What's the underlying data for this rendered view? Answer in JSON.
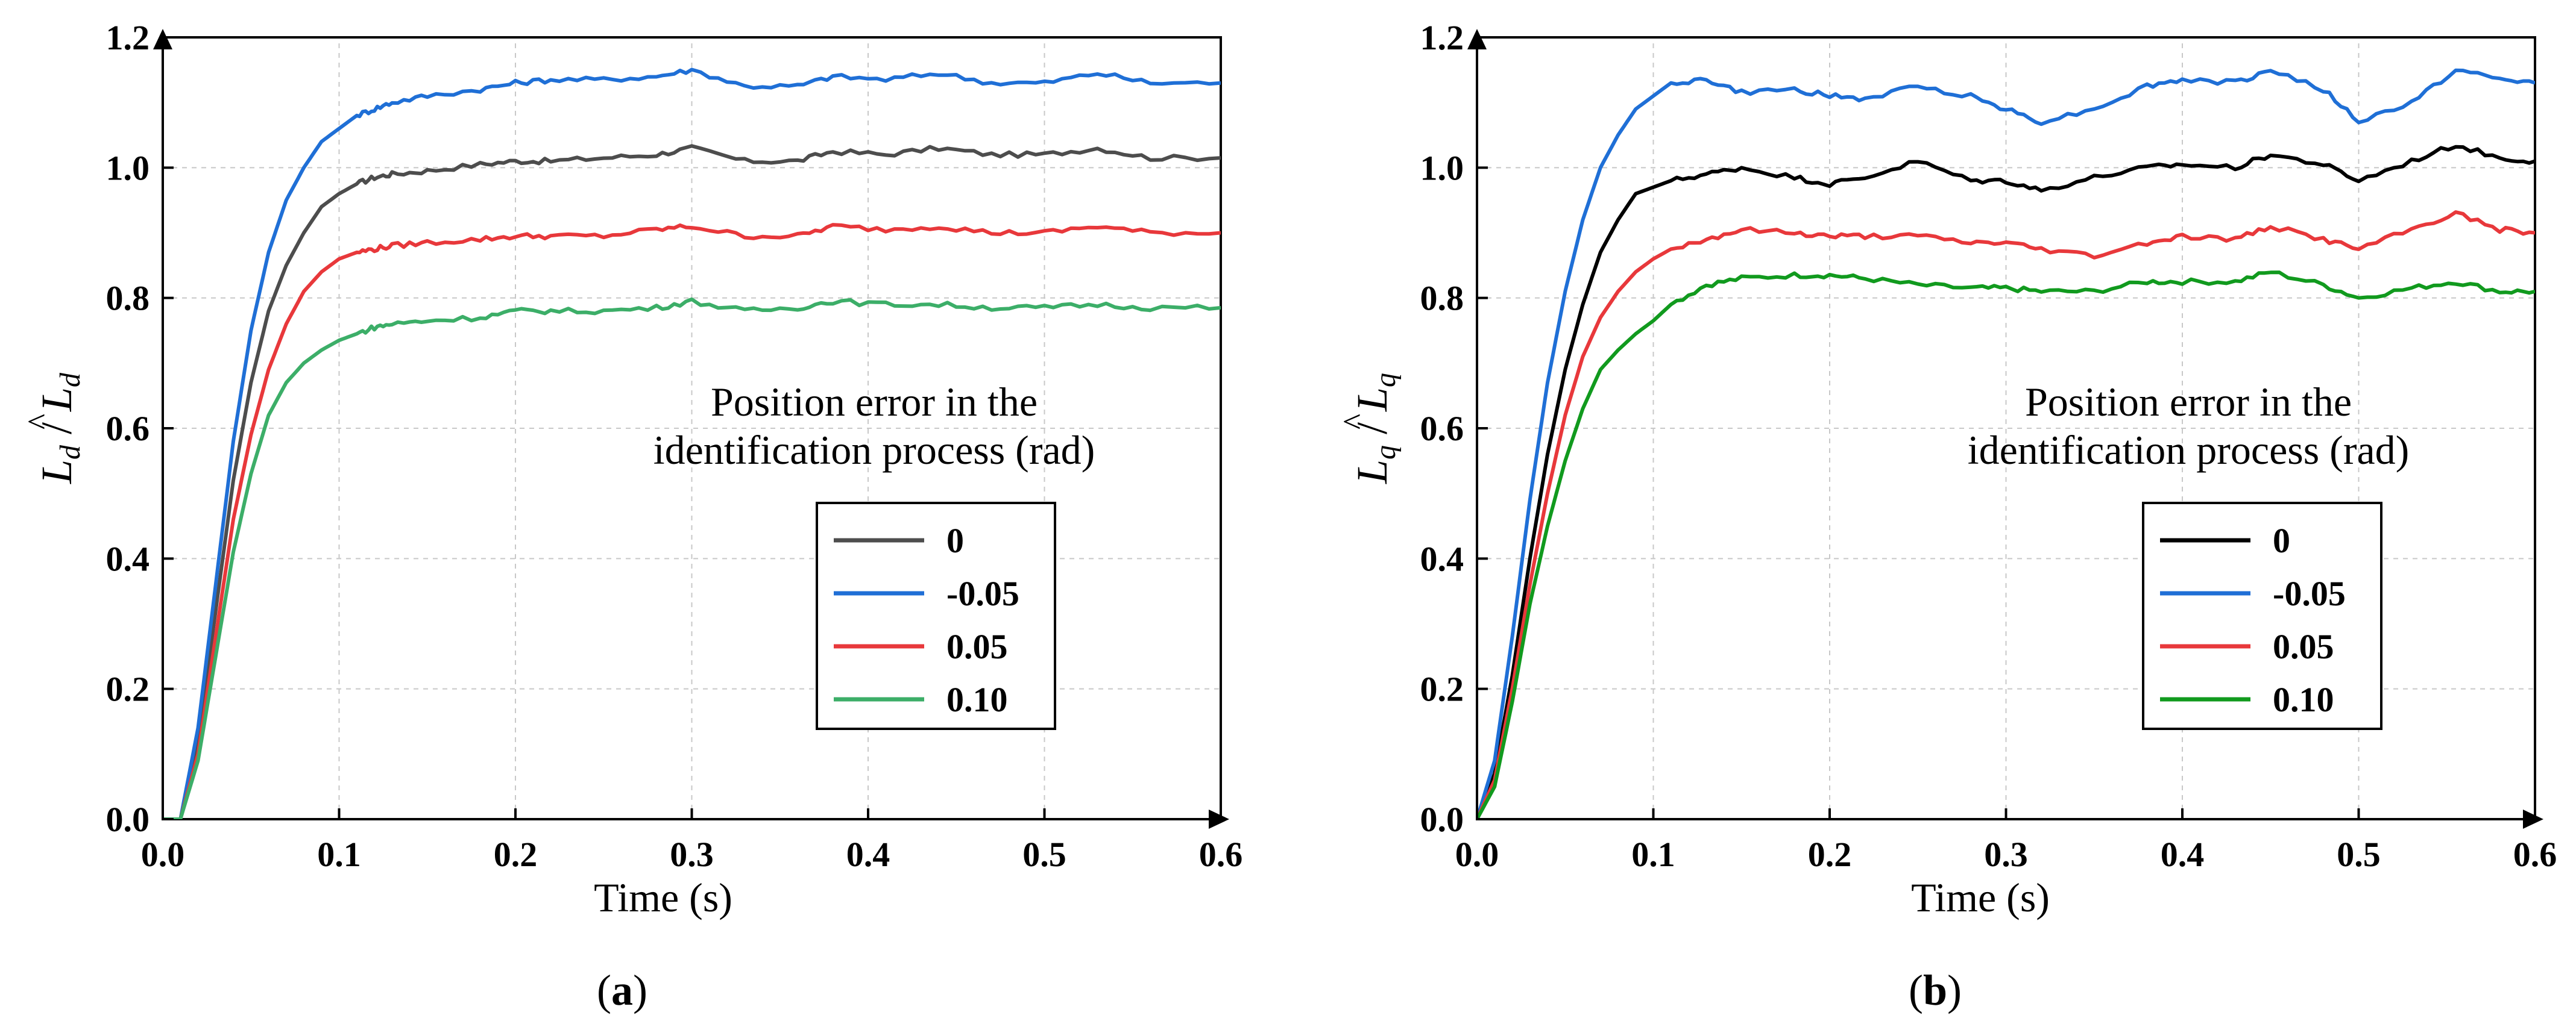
{
  "figure": {
    "panels": [
      {
        "caption_letter": "a",
        "ylabel_symbol": "L",
        "ylabel_sub": "d",
        "ylabel_sep": "/"
      },
      {
        "caption_letter": "b",
        "ylabel_symbol": "L",
        "ylabel_sub": "q",
        "ylabel_sep": "/"
      }
    ]
  },
  "chart_data": [
    {
      "type": "line",
      "title": "",
      "xlabel": "Time (s)",
      "ylabel": "L̂d / Ld",
      "xlim": [
        0.0,
        0.6
      ],
      "ylim": [
        0.0,
        1.2
      ],
      "xticks": [
        "0.0",
        "0.1",
        "0.2",
        "0.3",
        "0.4",
        "0.5",
        "0.6"
      ],
      "yticks": [
        "0.0",
        "0.2",
        "0.4",
        "0.6",
        "0.8",
        "1.0",
        "1.2"
      ],
      "grid": true,
      "legend_position": "center-right",
      "annotation": [
        "Position error in the",
        "identification process (rad)"
      ],
      "series": [
        {
          "name": "0",
          "color": "#4d4d4d",
          "x": [
            0,
            0.01,
            0.02,
            0.03,
            0.04,
            0.05,
            0.06,
            0.07,
            0.08,
            0.09,
            0.1,
            0.11,
            0.12,
            0.13,
            0.15,
            0.18,
            0.2,
            0.22,
            0.25,
            0.28,
            0.3,
            0.33,
            0.36,
            0.38,
            0.41,
            0.44,
            0.47,
            0.5,
            0.53,
            0.56,
            0.6
          ],
          "y": [
            0.0,
            0.0,
            0.12,
            0.32,
            0.52,
            0.67,
            0.78,
            0.85,
            0.9,
            0.94,
            0.96,
            0.975,
            0.985,
            0.99,
            0.995,
            1.005,
            1.01,
            1.01,
            1.015,
            1.02,
            1.03,
            1.01,
            1.01,
            1.025,
            1.02,
            1.03,
            1.02,
            1.02,
            1.03,
            1.015,
            1.015
          ]
        },
        {
          "name": "-0.05",
          "color": "#1f6fd6",
          "x": [
            0,
            0.01,
            0.02,
            0.03,
            0.04,
            0.05,
            0.06,
            0.07,
            0.08,
            0.09,
            0.1,
            0.11,
            0.12,
            0.13,
            0.15,
            0.18,
            0.2,
            0.22,
            0.25,
            0.28,
            0.3,
            0.33,
            0.36,
            0.38,
            0.41,
            0.44,
            0.47,
            0.5,
            0.53,
            0.56,
            0.6
          ],
          "y": [
            0.0,
            0.0,
            0.14,
            0.36,
            0.58,
            0.75,
            0.87,
            0.95,
            1.0,
            1.04,
            1.06,
            1.08,
            1.09,
            1.1,
            1.11,
            1.12,
            1.13,
            1.135,
            1.135,
            1.14,
            1.15,
            1.125,
            1.125,
            1.14,
            1.135,
            1.145,
            1.13,
            1.13,
            1.145,
            1.13,
            1.13
          ]
        },
        {
          "name": "0.05",
          "color": "#e8383b",
          "x": [
            0,
            0.01,
            0.02,
            0.03,
            0.04,
            0.05,
            0.06,
            0.07,
            0.08,
            0.09,
            0.1,
            0.11,
            0.12,
            0.13,
            0.15,
            0.18,
            0.2,
            0.22,
            0.25,
            0.28,
            0.3,
            0.33,
            0.36,
            0.38,
            0.41,
            0.44,
            0.47,
            0.5,
            0.53,
            0.56,
            0.6
          ],
          "y": [
            0.0,
            0.0,
            0.1,
            0.28,
            0.46,
            0.59,
            0.69,
            0.76,
            0.81,
            0.84,
            0.86,
            0.87,
            0.875,
            0.88,
            0.885,
            0.89,
            0.895,
            0.895,
            0.895,
            0.905,
            0.91,
            0.895,
            0.895,
            0.91,
            0.905,
            0.91,
            0.9,
            0.9,
            0.91,
            0.9,
            0.9
          ]
        },
        {
          "name": "0.10",
          "color": "#3cae68",
          "x": [
            0,
            0.01,
            0.02,
            0.03,
            0.04,
            0.05,
            0.06,
            0.07,
            0.08,
            0.09,
            0.1,
            0.11,
            0.12,
            0.13,
            0.15,
            0.18,
            0.2,
            0.22,
            0.25,
            0.28,
            0.3,
            0.33,
            0.36,
            0.38,
            0.41,
            0.44,
            0.47,
            0.5,
            0.53,
            0.56,
            0.6
          ],
          "y": [
            0.0,
            0.0,
            0.09,
            0.25,
            0.41,
            0.53,
            0.62,
            0.67,
            0.7,
            0.72,
            0.735,
            0.745,
            0.755,
            0.76,
            0.765,
            0.77,
            0.78,
            0.78,
            0.78,
            0.785,
            0.795,
            0.78,
            0.785,
            0.795,
            0.79,
            0.79,
            0.785,
            0.785,
            0.79,
            0.785,
            0.785
          ]
        }
      ]
    },
    {
      "type": "line",
      "title": "",
      "xlabel": "Time (s)",
      "ylabel": "L̂q / Lq",
      "xlim": [
        0.0,
        0.6
      ],
      "ylim": [
        0.0,
        1.2
      ],
      "xticks": [
        "0.0",
        "0.1",
        "0.2",
        "0.3",
        "0.4",
        "0.5",
        "0.6"
      ],
      "yticks": [
        "0.0",
        "0.2",
        "0.4",
        "0.6",
        "0.8",
        "1.0",
        "1.2"
      ],
      "grid": true,
      "legend_position": "center-right",
      "annotation": [
        "Position error in the",
        "identification process (rad)"
      ],
      "series": [
        {
          "name": "0",
          "color": "#000000",
          "x": [
            0,
            0.01,
            0.02,
            0.03,
            0.04,
            0.05,
            0.06,
            0.07,
            0.08,
            0.09,
            0.1,
            0.11,
            0.13,
            0.15,
            0.18,
            0.2,
            0.22,
            0.25,
            0.28,
            0.3,
            0.32,
            0.35,
            0.38,
            0.4,
            0.43,
            0.45,
            0.48,
            0.5,
            0.53,
            0.555,
            0.58,
            0.6
          ],
          "y": [
            0.0,
            0.07,
            0.22,
            0.4,
            0.56,
            0.69,
            0.79,
            0.87,
            0.92,
            0.96,
            0.97,
            0.98,
            0.99,
            1.0,
            0.985,
            0.975,
            0.985,
            1.01,
            0.98,
            0.98,
            0.965,
            0.985,
            1.0,
            1.005,
            1.0,
            1.02,
            1.005,
            0.98,
            1.01,
            1.035,
            1.015,
            1.01
          ]
        },
        {
          "name": "-0.05",
          "color": "#1f6fd6",
          "x": [
            0,
            0.01,
            0.02,
            0.03,
            0.04,
            0.05,
            0.06,
            0.07,
            0.08,
            0.09,
            0.1,
            0.11,
            0.13,
            0.15,
            0.18,
            0.2,
            0.22,
            0.25,
            0.28,
            0.3,
            0.32,
            0.35,
            0.38,
            0.4,
            0.43,
            0.45,
            0.48,
            0.5,
            0.53,
            0.555,
            0.58,
            0.6
          ],
          "y": [
            0.0,
            0.09,
            0.28,
            0.49,
            0.67,
            0.81,
            0.92,
            1.0,
            1.05,
            1.09,
            1.11,
            1.13,
            1.135,
            1.115,
            1.12,
            1.11,
            1.105,
            1.125,
            1.11,
            1.09,
            1.07,
            1.09,
            1.125,
            1.135,
            1.13,
            1.15,
            1.12,
            1.07,
            1.1,
            1.15,
            1.135,
            1.13
          ]
        },
        {
          "name": "0.05",
          "color": "#e8383b",
          "x": [
            0,
            0.01,
            0.02,
            0.03,
            0.04,
            0.05,
            0.06,
            0.07,
            0.08,
            0.09,
            0.1,
            0.11,
            0.13,
            0.15,
            0.18,
            0.2,
            0.22,
            0.25,
            0.28,
            0.3,
            0.32,
            0.35,
            0.38,
            0.4,
            0.43,
            0.45,
            0.48,
            0.5,
            0.53,
            0.555,
            0.58,
            0.6
          ],
          "y": [
            0.0,
            0.06,
            0.2,
            0.36,
            0.5,
            0.62,
            0.71,
            0.77,
            0.81,
            0.84,
            0.86,
            0.875,
            0.89,
            0.905,
            0.9,
            0.895,
            0.895,
            0.895,
            0.885,
            0.885,
            0.875,
            0.865,
            0.885,
            0.895,
            0.89,
            0.91,
            0.89,
            0.875,
            0.905,
            0.93,
            0.905,
            0.9
          ]
        },
        {
          "name": "0.10",
          "color": "#119a1e",
          "x": [
            0,
            0.01,
            0.02,
            0.03,
            0.04,
            0.05,
            0.06,
            0.07,
            0.08,
            0.09,
            0.1,
            0.11,
            0.13,
            0.15,
            0.18,
            0.2,
            0.22,
            0.25,
            0.28,
            0.3,
            0.32,
            0.35,
            0.38,
            0.4,
            0.43,
            0.45,
            0.48,
            0.5,
            0.53,
            0.555,
            0.58,
            0.6
          ],
          "y": [
            0.0,
            0.05,
            0.18,
            0.33,
            0.45,
            0.55,
            0.63,
            0.69,
            0.72,
            0.745,
            0.765,
            0.79,
            0.82,
            0.83,
            0.835,
            0.835,
            0.83,
            0.82,
            0.815,
            0.815,
            0.81,
            0.81,
            0.825,
            0.825,
            0.825,
            0.84,
            0.82,
            0.8,
            0.815,
            0.825,
            0.81,
            0.81
          ]
        }
      ]
    }
  ]
}
